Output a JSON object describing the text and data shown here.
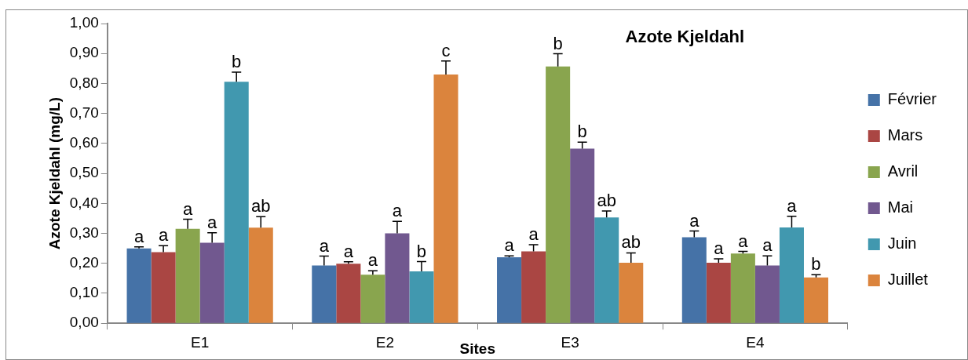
{
  "chart_data": {
    "type": "bar",
    "title": "Azote Kjeldahl",
    "xlabel": "Sites",
    "ylabel": "Azote Kjeldahl (mg/L)",
    "categories": [
      "E1",
      "E2",
      "E3",
      "E4"
    ],
    "series": [
      {
        "name": "Février",
        "color": "#4572a7",
        "values": [
          0.25,
          0.193,
          0.22,
          0.287
        ],
        "errors": [
          0.005,
          0.031,
          0.005,
          0.021
        ],
        "value_labels": [
          "a",
          "a",
          "a",
          "a"
        ]
      },
      {
        "name": "Mars",
        "color": "#aa4643",
        "values": [
          0.237,
          0.199,
          0.24,
          0.202
        ],
        "errors": [
          0.022,
          0.006,
          0.022,
          0.013
        ],
        "value_labels": [
          "a",
          "a",
          "a",
          "a"
        ]
      },
      {
        "name": "Avril",
        "color": "#89a54e",
        "values": [
          0.315,
          0.162,
          0.857,
          0.233
        ],
        "errors": [
          0.032,
          0.013,
          0.042,
          0.007
        ],
        "value_labels": [
          "a",
          "a",
          "b",
          "a"
        ]
      },
      {
        "name": "Mai",
        "color": "#71588f",
        "values": [
          0.269,
          0.3,
          0.583,
          0.193
        ],
        "errors": [
          0.033,
          0.04,
          0.021,
          0.032
        ],
        "value_labels": [
          "a",
          "a",
          "b",
          "a"
        ]
      },
      {
        "name": "Juin",
        "color": "#4198af",
        "values": [
          0.806,
          0.173,
          0.353,
          0.32
        ],
        "errors": [
          0.032,
          0.033,
          0.022,
          0.037
        ],
        "value_labels": [
          "b",
          "b",
          "ab",
          "a"
        ]
      },
      {
        "name": "Juillet",
        "color": "#db843d",
        "values": [
          0.319,
          0.83,
          0.202,
          0.153
        ],
        "errors": [
          0.037,
          0.045,
          0.033,
          0.009
        ],
        "value_labels": [
          "ab",
          "c",
          "ab",
          "b"
        ]
      }
    ],
    "ylim": [
      0,
      1
    ],
    "yticks": [
      {
        "value": 0,
        "label": "0,00"
      },
      {
        "value": 0.1,
        "label": "0,10"
      },
      {
        "value": 0.2,
        "label": "0,20"
      },
      {
        "value": 0.3,
        "label": "0,30"
      },
      {
        "value": 0.4,
        "label": "0,40"
      },
      {
        "value": 0.5,
        "label": "0,50"
      },
      {
        "value": 0.6,
        "label": "0,60"
      },
      {
        "value": 0.7,
        "label": "0,70"
      },
      {
        "value": 0.8,
        "label": "0,80"
      },
      {
        "value": 0.9,
        "label": "0,90"
      },
      {
        "value": 1,
        "label": "1,00"
      }
    ],
    "grid": false,
    "legend": "right"
  }
}
